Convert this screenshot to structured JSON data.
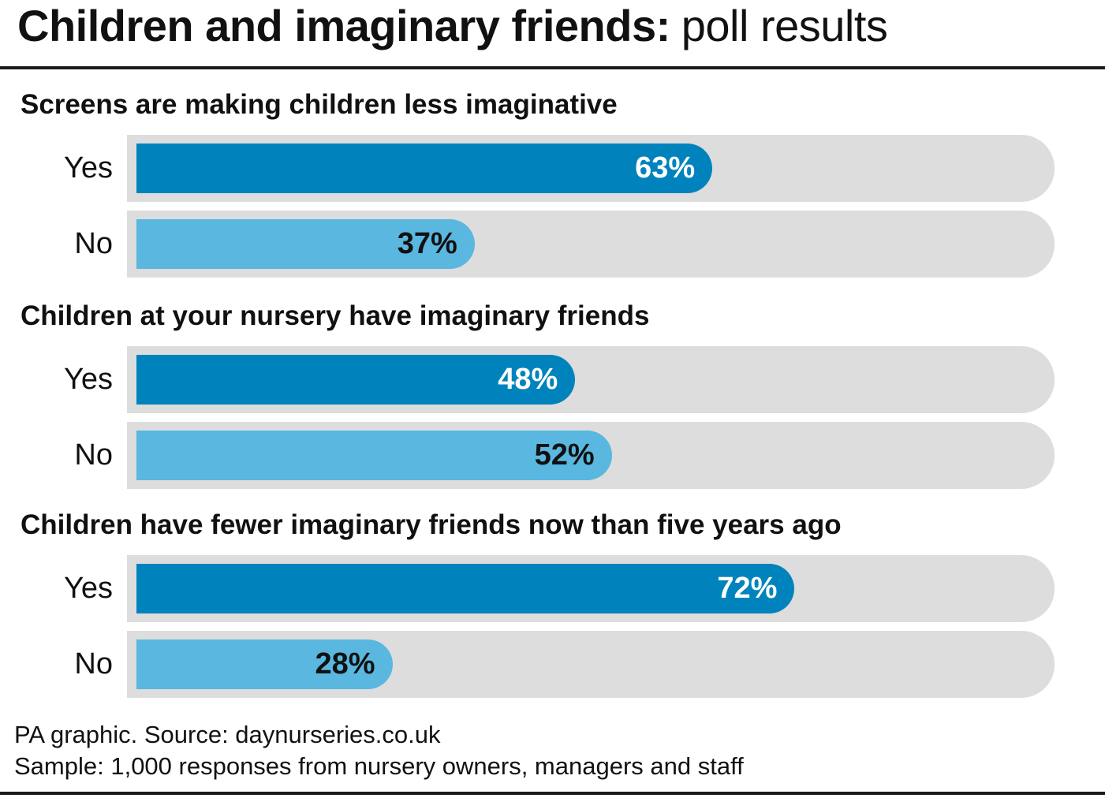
{
  "title": {
    "main": "Children and imaginary friends:",
    "sub": "poll results"
  },
  "chart_data": {
    "type": "bar",
    "orientation": "horizontal",
    "unit": "%",
    "xlim": [
      0,
      100
    ],
    "grid": false,
    "colors": {
      "Yes": "#0083bd",
      "No": "#59b7e0",
      "track": "#dcdddc"
    },
    "groups": [
      {
        "question": "Screens are making children less imaginative",
        "bars": [
          {
            "label": "Yes",
            "value": 63,
            "value_label": "63%"
          },
          {
            "label": "No",
            "value": 37,
            "value_label": "37%"
          }
        ]
      },
      {
        "question": "Children at your nursery have imaginary friends",
        "bars": [
          {
            "label": "Yes",
            "value": 48,
            "value_label": "48%"
          },
          {
            "label": "No",
            "value": 52,
            "value_label": "52%"
          }
        ]
      },
      {
        "question": "Children have fewer imaginary friends now than five years ago",
        "bars": [
          {
            "label": "Yes",
            "value": 72,
            "value_label": "72%"
          },
          {
            "label": "No",
            "value": 28,
            "value_label": "28%"
          }
        ]
      }
    ]
  },
  "footer": {
    "source": "PA graphic. Source: daynurseries.co.uk",
    "sample": "Sample: 1,000 responses from nursery owners, managers and staff"
  }
}
